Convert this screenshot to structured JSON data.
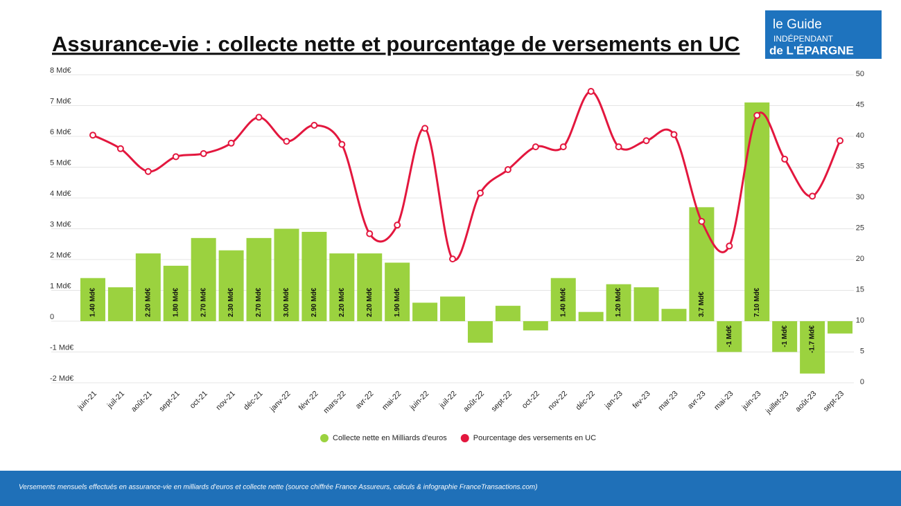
{
  "header": {
    "logo": [
      "le Guide",
      "INDÉPENDANT",
      "de L'ÉPARGNE"
    ]
  },
  "footer": {
    "caption": "Versements mensuels effectués en assurance-vie en milliards d'euros et collecte nette (source chiffrée France Assureurs, calculs & infographie FranceTransactions.com)"
  },
  "chart_data": {
    "type": "bar-line",
    "title": "Assurance-vie : collecte nette et pourcentage de versements en UC",
    "categories": [
      "juin-21",
      "juil-21",
      "août-21",
      "sept-21",
      "oct-21",
      "nov-21",
      "déc-21",
      "janv-22",
      "févr-22",
      "mars-22",
      "avr-22",
      "mai-22",
      "juin-22",
      "juil-22",
      "août-22",
      "sept-22",
      "oct-22",
      "nov-22",
      "déc-22",
      "jan-23",
      "fev-23",
      "mar-23",
      "avr-23",
      "mai-23",
      "juin-23",
      "juillet-23",
      "août-23",
      "sept-23"
    ],
    "series": [
      {
        "name": "Collecte nette en Milliards d'euros",
        "color": "#9bd23f",
        "type": "bar",
        "values": [
          1.4,
          1.1,
          2.2,
          1.8,
          2.7,
          2.3,
          2.7,
          3.0,
          2.9,
          2.2,
          2.2,
          1.9,
          0.6,
          0.8,
          -0.7,
          0.5,
          -0.3,
          1.4,
          0.3,
          1.2,
          1.1,
          0.4,
          3.7,
          -1,
          7.1,
          -1,
          -1.7,
          -0.4
        ],
        "value_labels": [
          "1.40 Md€",
          null,
          "2.20 Md€",
          "1.80 Md€",
          "2.70 Md€",
          "2.30 Md€",
          "2.70 Md€",
          "3.00 Md€",
          "2.90 Md€",
          "2.20 Md€",
          "2.20 Md€",
          "1.90 Md€",
          null,
          null,
          null,
          null,
          null,
          "1.40 Md€",
          null,
          "1.20 Md€",
          null,
          null,
          "3.7 Md€",
          "-1 Md€",
          "7.10 Md€",
          "-1 Md€",
          "-1.7 Md€",
          null
        ]
      },
      {
        "name": "Pourcentage des versements en UC",
        "color": "#e3173e",
        "type": "line",
        "axis": "y2",
        "values": [
          40.2,
          38,
          34.3,
          36.7,
          37.2,
          38.9,
          43.1,
          39.2,
          41.8,
          38.7,
          24.2,
          25.6,
          41.3,
          20.1,
          30.8,
          34.6,
          38.3,
          38.3,
          47.3,
          38.3,
          39.3,
          40.3,
          26.2,
          22.2,
          43.4,
          36.3,
          30.3,
          39.3
        ]
      }
    ],
    "ylim": [
      -2,
      8
    ],
    "yticks": [
      {
        "value": -2,
        "label": "-2 Md€"
      },
      {
        "value": -1,
        "label": "-1 Md€"
      },
      0,
      {
        "value": 1,
        "label": "1 Md€"
      },
      {
        "value": 2,
        "label": "2 Md€"
      },
      {
        "value": 3,
        "label": "3 Md€"
      },
      {
        "value": 4,
        "label": "4 Md€"
      },
      {
        "value": 5,
        "label": "5 Md€"
      },
      {
        "value": 6,
        "label": "6 Md€"
      },
      {
        "value": 7,
        "label": "7 Md€"
      },
      {
        "value": 8,
        "label": "8 Md€"
      }
    ],
    "y2lim": [
      0,
      50
    ],
    "y2ticks": [
      0,
      5,
      10,
      15,
      20,
      25,
      30,
      35,
      40,
      45,
      50
    ],
    "grid": true,
    "legend": "bottom"
  }
}
